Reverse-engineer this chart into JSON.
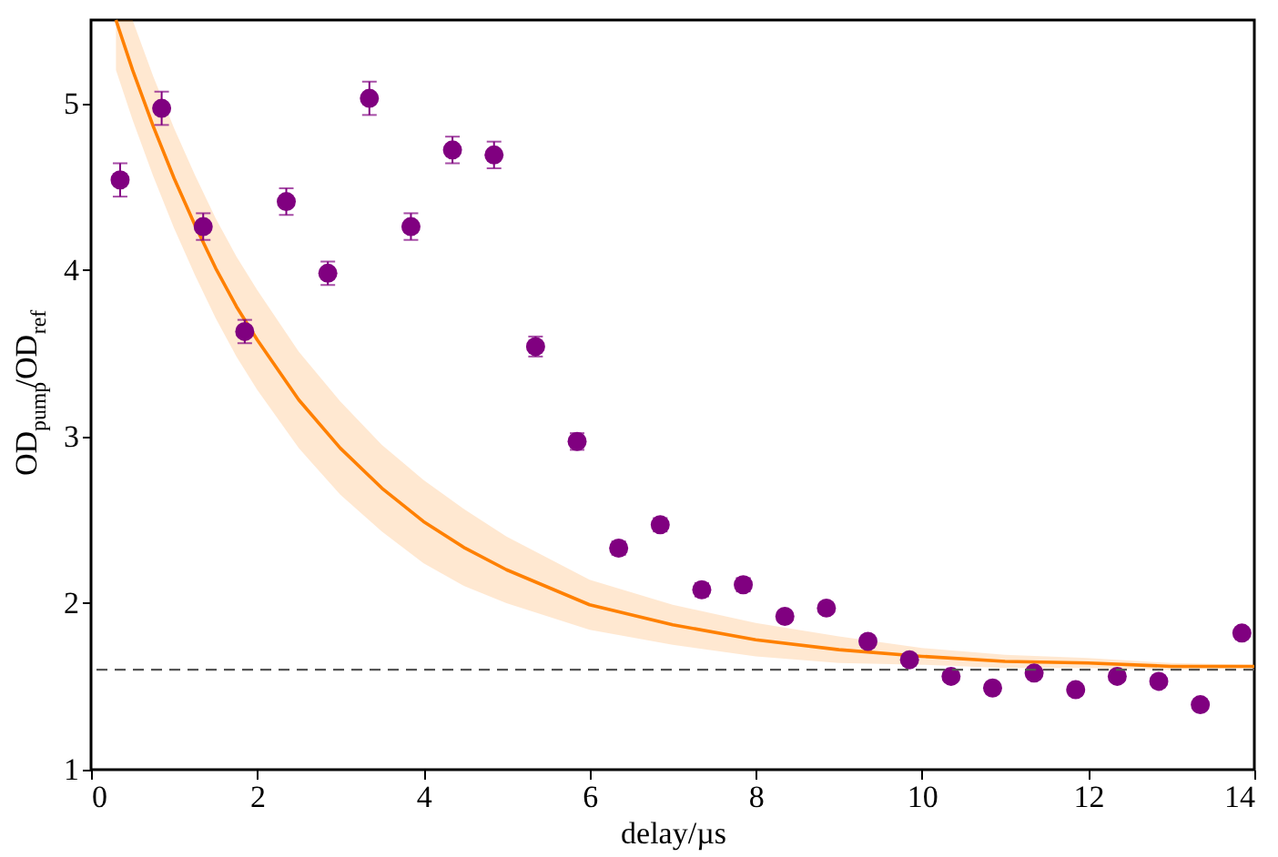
{
  "chart_data": {
    "type": "scatter",
    "xlabel": "delay/µs",
    "ylabel": "OD$_{pump}$/OD$_{ref}$",
    "xlim": [
      0,
      14
    ],
    "ylim": [
      1,
      5.5
    ],
    "xticks": [
      0,
      2,
      4,
      6,
      8,
      10,
      12,
      14
    ],
    "yticks": [
      1,
      2,
      3,
      4,
      5
    ],
    "marker": "circle",
    "series": [
      {
        "type": "line",
        "marker": "none",
        "color": "#ff8000",
        "x": [
          0.3,
          0.5,
          0.75,
          1,
          1.25,
          1.5,
          1.75,
          2,
          2.5,
          3,
          3.5,
          4,
          4.5,
          5,
          6,
          7,
          8,
          9,
          10,
          11,
          12,
          13,
          14
        ],
        "values": [
          5.5,
          5.2,
          4.86,
          4.55,
          4.27,
          4.01,
          3.78,
          3.58,
          3.22,
          2.93,
          2.69,
          2.49,
          2.33,
          2.2,
          1.99,
          1.87,
          1.78,
          1.72,
          1.68,
          1.65,
          1.64,
          1.62,
          1.62
        ],
        "lower": [
          5.2,
          4.9,
          4.56,
          4.25,
          3.97,
          3.71,
          3.48,
          3.28,
          2.93,
          2.65,
          2.43,
          2.24,
          2.1,
          2.0,
          1.84,
          1.75,
          1.68,
          1.64,
          1.63,
          1.61,
          1.61,
          1.6,
          1.61
        ],
        "upper": [
          5.5,
          5.5,
          5.16,
          4.85,
          4.57,
          4.31,
          4.08,
          3.88,
          3.51,
          3.21,
          2.95,
          2.74,
          2.56,
          2.4,
          2.14,
          1.99,
          1.88,
          1.8,
          1.73,
          1.69,
          1.67,
          1.64,
          1.63
        ]
      },
      {
        "color": "#800080",
        "x": [
          0.35,
          0.85,
          1.35,
          1.85,
          2.35,
          2.85,
          3.35,
          3.85,
          4.35,
          4.85,
          5.35,
          5.85,
          6.35,
          6.85,
          7.35,
          7.85,
          8.35,
          8.85,
          9.35,
          9.85,
          10.35,
          10.85,
          11.35,
          11.85,
          12.35,
          12.85,
          13.35,
          13.85
        ],
        "values": [
          4.54,
          4.97,
          4.26,
          3.63,
          4.41,
          3.98,
          5.03,
          4.26,
          4.72,
          4.69,
          3.54,
          2.97,
          2.33,
          2.47,
          2.08,
          2.11,
          1.92,
          1.97,
          1.77,
          1.66,
          1.56,
          1.49,
          1.58,
          1.48,
          1.56,
          1.53,
          1.39,
          1.82
        ],
        "errors": [
          0.1,
          0.1,
          0.08,
          0.07,
          0.08,
          0.07,
          0.1,
          0.08,
          0.08,
          0.08,
          0.06,
          0.05,
          0.04,
          0.04,
          0.04,
          0.04,
          0.03,
          0.03,
          0.03,
          0.03,
          0.03,
          0.03,
          0.03,
          0.03,
          0.03,
          0.03,
          0.03,
          0.03
        ]
      }
    ],
    "ref_lines": [
      {
        "axis": "y",
        "value": 1.6,
        "color": "#555555",
        "line_style": "dashed"
      }
    ]
  }
}
